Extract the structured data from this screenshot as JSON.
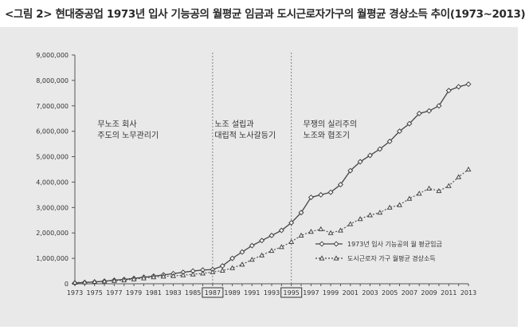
{
  "title": "<그림 2> 현대중공업 1973년 입사 기능공의 월평균 임금과 도시근로자가구의 월평균 경상소득 추이(1973~2013)",
  "chart_data": {
    "type": "line",
    "x": [
      1973,
      1974,
      1975,
      1976,
      1977,
      1978,
      1979,
      1980,
      1981,
      1982,
      1983,
      1984,
      1985,
      1986,
      1987,
      1988,
      1989,
      1990,
      1991,
      1992,
      1993,
      1994,
      1995,
      1996,
      1997,
      1998,
      1999,
      2000,
      2001,
      2002,
      2003,
      2004,
      2005,
      2006,
      2007,
      2008,
      2009,
      2010,
      2011,
      2012,
      2013
    ],
    "xticks": [
      "1973",
      "1975",
      "1977",
      "1979",
      "1981",
      "1983",
      "1985",
      "1987",
      "1989",
      "1991",
      "1993",
      "1995",
      "1997",
      "1999",
      "2001",
      "2003",
      "2005",
      "2007",
      "2009",
      "2011",
      "2013"
    ],
    "boxed_xticks": [
      "1987",
      "1995"
    ],
    "yticks": [
      "0",
      "1,000,000",
      "2,000,000",
      "3,000,000",
      "4,000,000",
      "5,000,000",
      "6,000,000",
      "7,000,000",
      "8,000,000",
      "9,000,000"
    ],
    "ylim": [
      0,
      9000000
    ],
    "xlim": [
      1973,
      2013
    ],
    "grid": false,
    "legend_position": "bottom-right",
    "series": [
      {
        "name": "1973년 입사 기능공의 월 평균임금",
        "marker": "diamond",
        "line": "solid",
        "values": [
          30000,
          50000,
          70000,
          100000,
          140000,
          170000,
          210000,
          260000,
          300000,
          350000,
          400000,
          450000,
          500000,
          540000,
          560000,
          700000,
          1000000,
          1250000,
          1500000,
          1700000,
          1900000,
          2100000,
          2400000,
          2800000,
          3400000,
          3500000,
          3600000,
          3900000,
          4450000,
          4800000,
          5050000,
          5300000,
          5600000,
          6000000,
          6300000,
          6700000,
          6800000,
          7000000,
          7600000,
          7750000,
          7850000
        ]
      },
      {
        "name": "도시근로자 가구 월평균 경상소득",
        "marker": "triangle",
        "line": "dotted",
        "values": [
          50000,
          60000,
          80000,
          100000,
          120000,
          140000,
          180000,
          220000,
          260000,
          290000,
          310000,
          340000,
          370000,
          410000,
          460000,
          520000,
          620000,
          760000,
          950000,
          1120000,
          1300000,
          1450000,
          1650000,
          1900000,
          2050000,
          2150000,
          2000000,
          2100000,
          2350000,
          2550000,
          2700000,
          2800000,
          3000000,
          3100000,
          3350000,
          3550000,
          3750000,
          3650000,
          3850000,
          4200000,
          4500000
        ]
      }
    ],
    "period_dividers": [
      1987,
      1995
    ],
    "annotations": [
      {
        "lines": [
          "무노조 회사",
          "주도의 노무관리기"
        ]
      },
      {
        "lines": [
          "노조 설립과",
          "대립적 노사갈등기"
        ]
      },
      {
        "lines": [
          "무쟁의 실리주의",
          "노조와 협조기"
        ]
      }
    ]
  }
}
